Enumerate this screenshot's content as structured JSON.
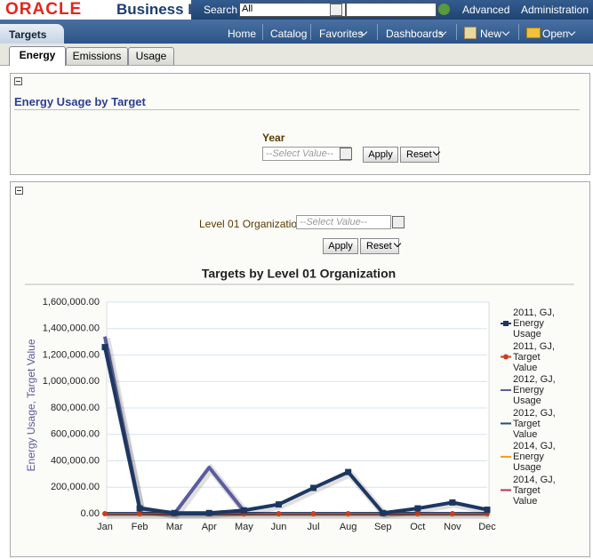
{
  "header": {
    "logo": "ORACLE",
    "app_title": "Business I",
    "search_label": "Search",
    "search_scope": "All",
    "links": [
      "Advanced",
      "Administration"
    ]
  },
  "nav": {
    "tab": "Targets",
    "items": [
      "Home",
      "Catalog",
      "Favorites",
      "Dashboards",
      "New",
      "Open"
    ]
  },
  "page_tabs": [
    "Energy",
    "Emissions",
    "Usage"
  ],
  "section1": {
    "title": "Energy Usage by Target",
    "prompt_label": "Year",
    "placeholder": "--Select Value--",
    "apply": "Apply",
    "reset": "Reset"
  },
  "section2": {
    "prompt_label": "Level 01 Organization",
    "placeholder": "--Select Value--",
    "apply": "Apply",
    "reset": "Reset"
  },
  "chart_data": {
    "type": "line",
    "title": "Targets by Level 01 Organization",
    "y_label": "Energy Usage, Target Value",
    "categories": [
      "Jan",
      "Feb",
      "Mar",
      "Apr",
      "May",
      "Jun",
      "Jul",
      "Aug",
      "Sep",
      "Oct",
      "Nov",
      "Dec"
    ],
    "ylim": [
      0,
      1600000
    ],
    "yticks": [
      {
        "value": 0,
        "label": "0.00"
      },
      {
        "value": 200000,
        "label": "200,000.00"
      },
      {
        "value": 400000,
        "label": "400,000.00"
      },
      {
        "value": 600000,
        "label": "600,000.00"
      },
      {
        "value": 800000,
        "label": "800,000.00"
      },
      {
        "value": 1000000,
        "label": "1,000,000.00"
      },
      {
        "value": 1200000,
        "label": "1,200,000.00"
      },
      {
        "value": 1400000,
        "label": "1,400,000.00"
      },
      {
        "value": 1600000,
        "label": "1,600,000.00"
      }
    ],
    "grid": true,
    "legend": "right",
    "series": [
      {
        "name": "2011, GJ, Energy Usage",
        "color": "#1c3760",
        "marker": "square",
        "values": [
          1260000,
          40000,
          5000,
          5000,
          25000,
          70000,
          195000,
          315000,
          5000,
          40000,
          85000,
          30000
        ]
      },
      {
        "name": "2011, GJ, Target Value",
        "color": "#c9401c",
        "marker": "circle",
        "values": [
          0,
          0,
          0,
          0,
          0,
          0,
          0,
          0,
          0,
          0,
          0,
          0
        ]
      },
      {
        "name": "2012, GJ, Energy Usage",
        "color": "#5d5c9c",
        "marker": "none",
        "values": [
          1340000,
          45000,
          0,
          350000,
          20000,
          null,
          null,
          null,
          null,
          null,
          null,
          null
        ]
      },
      {
        "name": "2012, GJ, Target Value",
        "color": "#1f4e79",
        "marker": "none",
        "values": [
          0,
          0,
          0,
          0,
          0,
          0,
          0,
          0,
          0,
          0,
          0,
          0
        ]
      },
      {
        "name": "2014, GJ, Energy Usage",
        "color": "#f5a01e",
        "marker": "none",
        "values": [
          null,
          null,
          null,
          null,
          null,
          null,
          null,
          null,
          null,
          null,
          null,
          null
        ]
      },
      {
        "name": "2014, GJ, Target Value",
        "color": "#b8325a",
        "marker": "none",
        "values": [
          null,
          null,
          null,
          null,
          null,
          null,
          null,
          null,
          null,
          null,
          null,
          null
        ]
      }
    ]
  }
}
